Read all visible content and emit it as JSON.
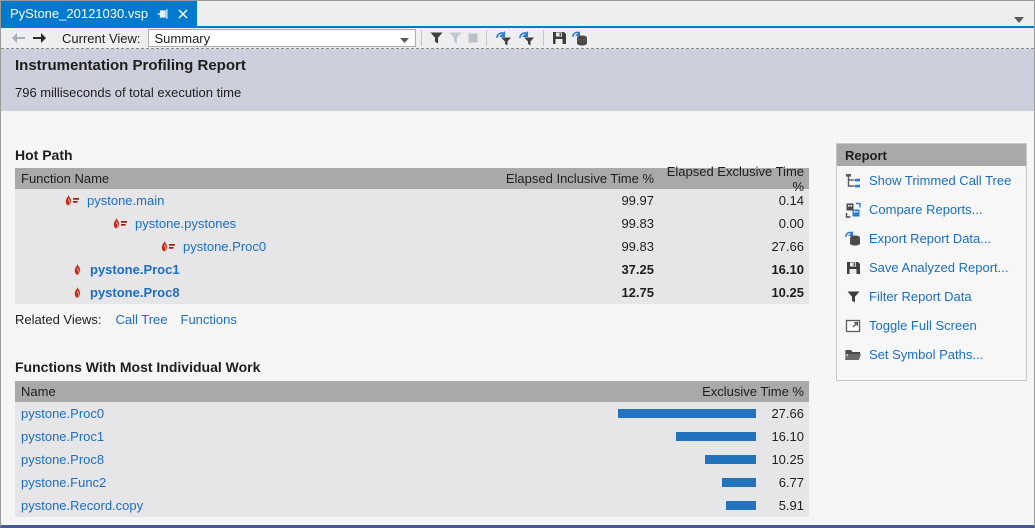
{
  "colors": {
    "tab_blue": "#007ACC",
    "link_blue": "#1B6EC2",
    "bar_blue": "#2272BC",
    "flame_red": "#C42B1C",
    "table_header_gray": "#A9A9A9",
    "header_band_lavender": "#CDCFDC",
    "window_bottom_border": "#4A5A96"
  },
  "tab_bar": {
    "tab_title": "PyStone_20121030.vsp",
    "icons": [
      "pin-icon",
      "close-icon",
      "tab-list-chevron-icon"
    ]
  },
  "toolbar": {
    "current_view_label": "Current View:",
    "view_value": "Summary",
    "icons": [
      "back-arrow-icon",
      "forward-arrow-icon",
      "dropdown-chevron-icon",
      "filter-icon",
      "filter-disabled-icon",
      "stop-disabled-icon",
      "apply-filter-icon",
      "reapply-filter-icon",
      "save-icon",
      "export-data-icon"
    ]
  },
  "report_header": {
    "title": "Instrumentation Profiling Report",
    "subtitle": "796 milliseconds of total execution time"
  },
  "hot_path": {
    "title": "Hot Path",
    "columns": [
      "Function Name",
      "Elapsed Inclusive Time %",
      "Elapsed Exclusive Time %"
    ],
    "rows": [
      {
        "name": "pystone.main",
        "inclusive": "99.97",
        "exclusive": "0.14",
        "indent": 0,
        "icon": "hot-path-flame-arrow",
        "bold": false
      },
      {
        "name": "pystone.pystones",
        "inclusive": "99.83",
        "exclusive": "0.00",
        "indent": 1,
        "icon": "hot-path-flame-arrow",
        "bold": false
      },
      {
        "name": "pystone.Proc0",
        "inclusive": "99.83",
        "exclusive": "27.66",
        "indent": 2,
        "icon": "hot-path-flame-arrow",
        "bold": false
      },
      {
        "name": "pystone.Proc1",
        "inclusive": "37.25",
        "exclusive": "16.10",
        "indent": 0,
        "icon": "flame",
        "bold": true
      },
      {
        "name": "pystone.Proc8",
        "inclusive": "12.75",
        "exclusive": "10.25",
        "indent": 0,
        "icon": "flame",
        "bold": true
      }
    ],
    "related_views_label": "Related Views:",
    "related_views": [
      "Call Tree",
      "Functions"
    ]
  },
  "chart_data": {
    "type": "bar",
    "title": "Functions With Most Individual Work",
    "columns": [
      "Name",
      "Exclusive Time %"
    ],
    "categories": [
      "pystone.Proc0",
      "pystone.Proc1",
      "pystone.Proc8",
      "pystone.Func2",
      "pystone.Record.copy"
    ],
    "values": [
      27.66,
      16.1,
      10.25,
      6.77,
      5.91
    ],
    "value_labels": [
      "27.66",
      "16.10",
      "10.25",
      "6.77",
      "5.91"
    ],
    "xlabel": "Exclusive Time %",
    "ylabel": "Name",
    "xlim": [
      0,
      30
    ],
    "orientation": "horizontal",
    "bar_color": "#2272BC",
    "legend": "none"
  },
  "report_panel": {
    "title": "Report",
    "items": [
      {
        "label": "Show Trimmed Call Tree",
        "icon": "trimmed-call-tree-icon"
      },
      {
        "label": "Compare Reports...",
        "icon": "compare-reports-icon"
      },
      {
        "label": "Export Report Data...",
        "icon": "export-report-data-icon"
      },
      {
        "label": "Save Analyzed Report...",
        "icon": "save-analyzed-report-icon"
      },
      {
        "label": "Filter Report Data",
        "icon": "filter-report-data-icon"
      },
      {
        "label": "Toggle Full Screen",
        "icon": "toggle-full-screen-icon"
      },
      {
        "label": "Set Symbol Paths...",
        "icon": "set-symbol-paths-icon"
      }
    ]
  }
}
